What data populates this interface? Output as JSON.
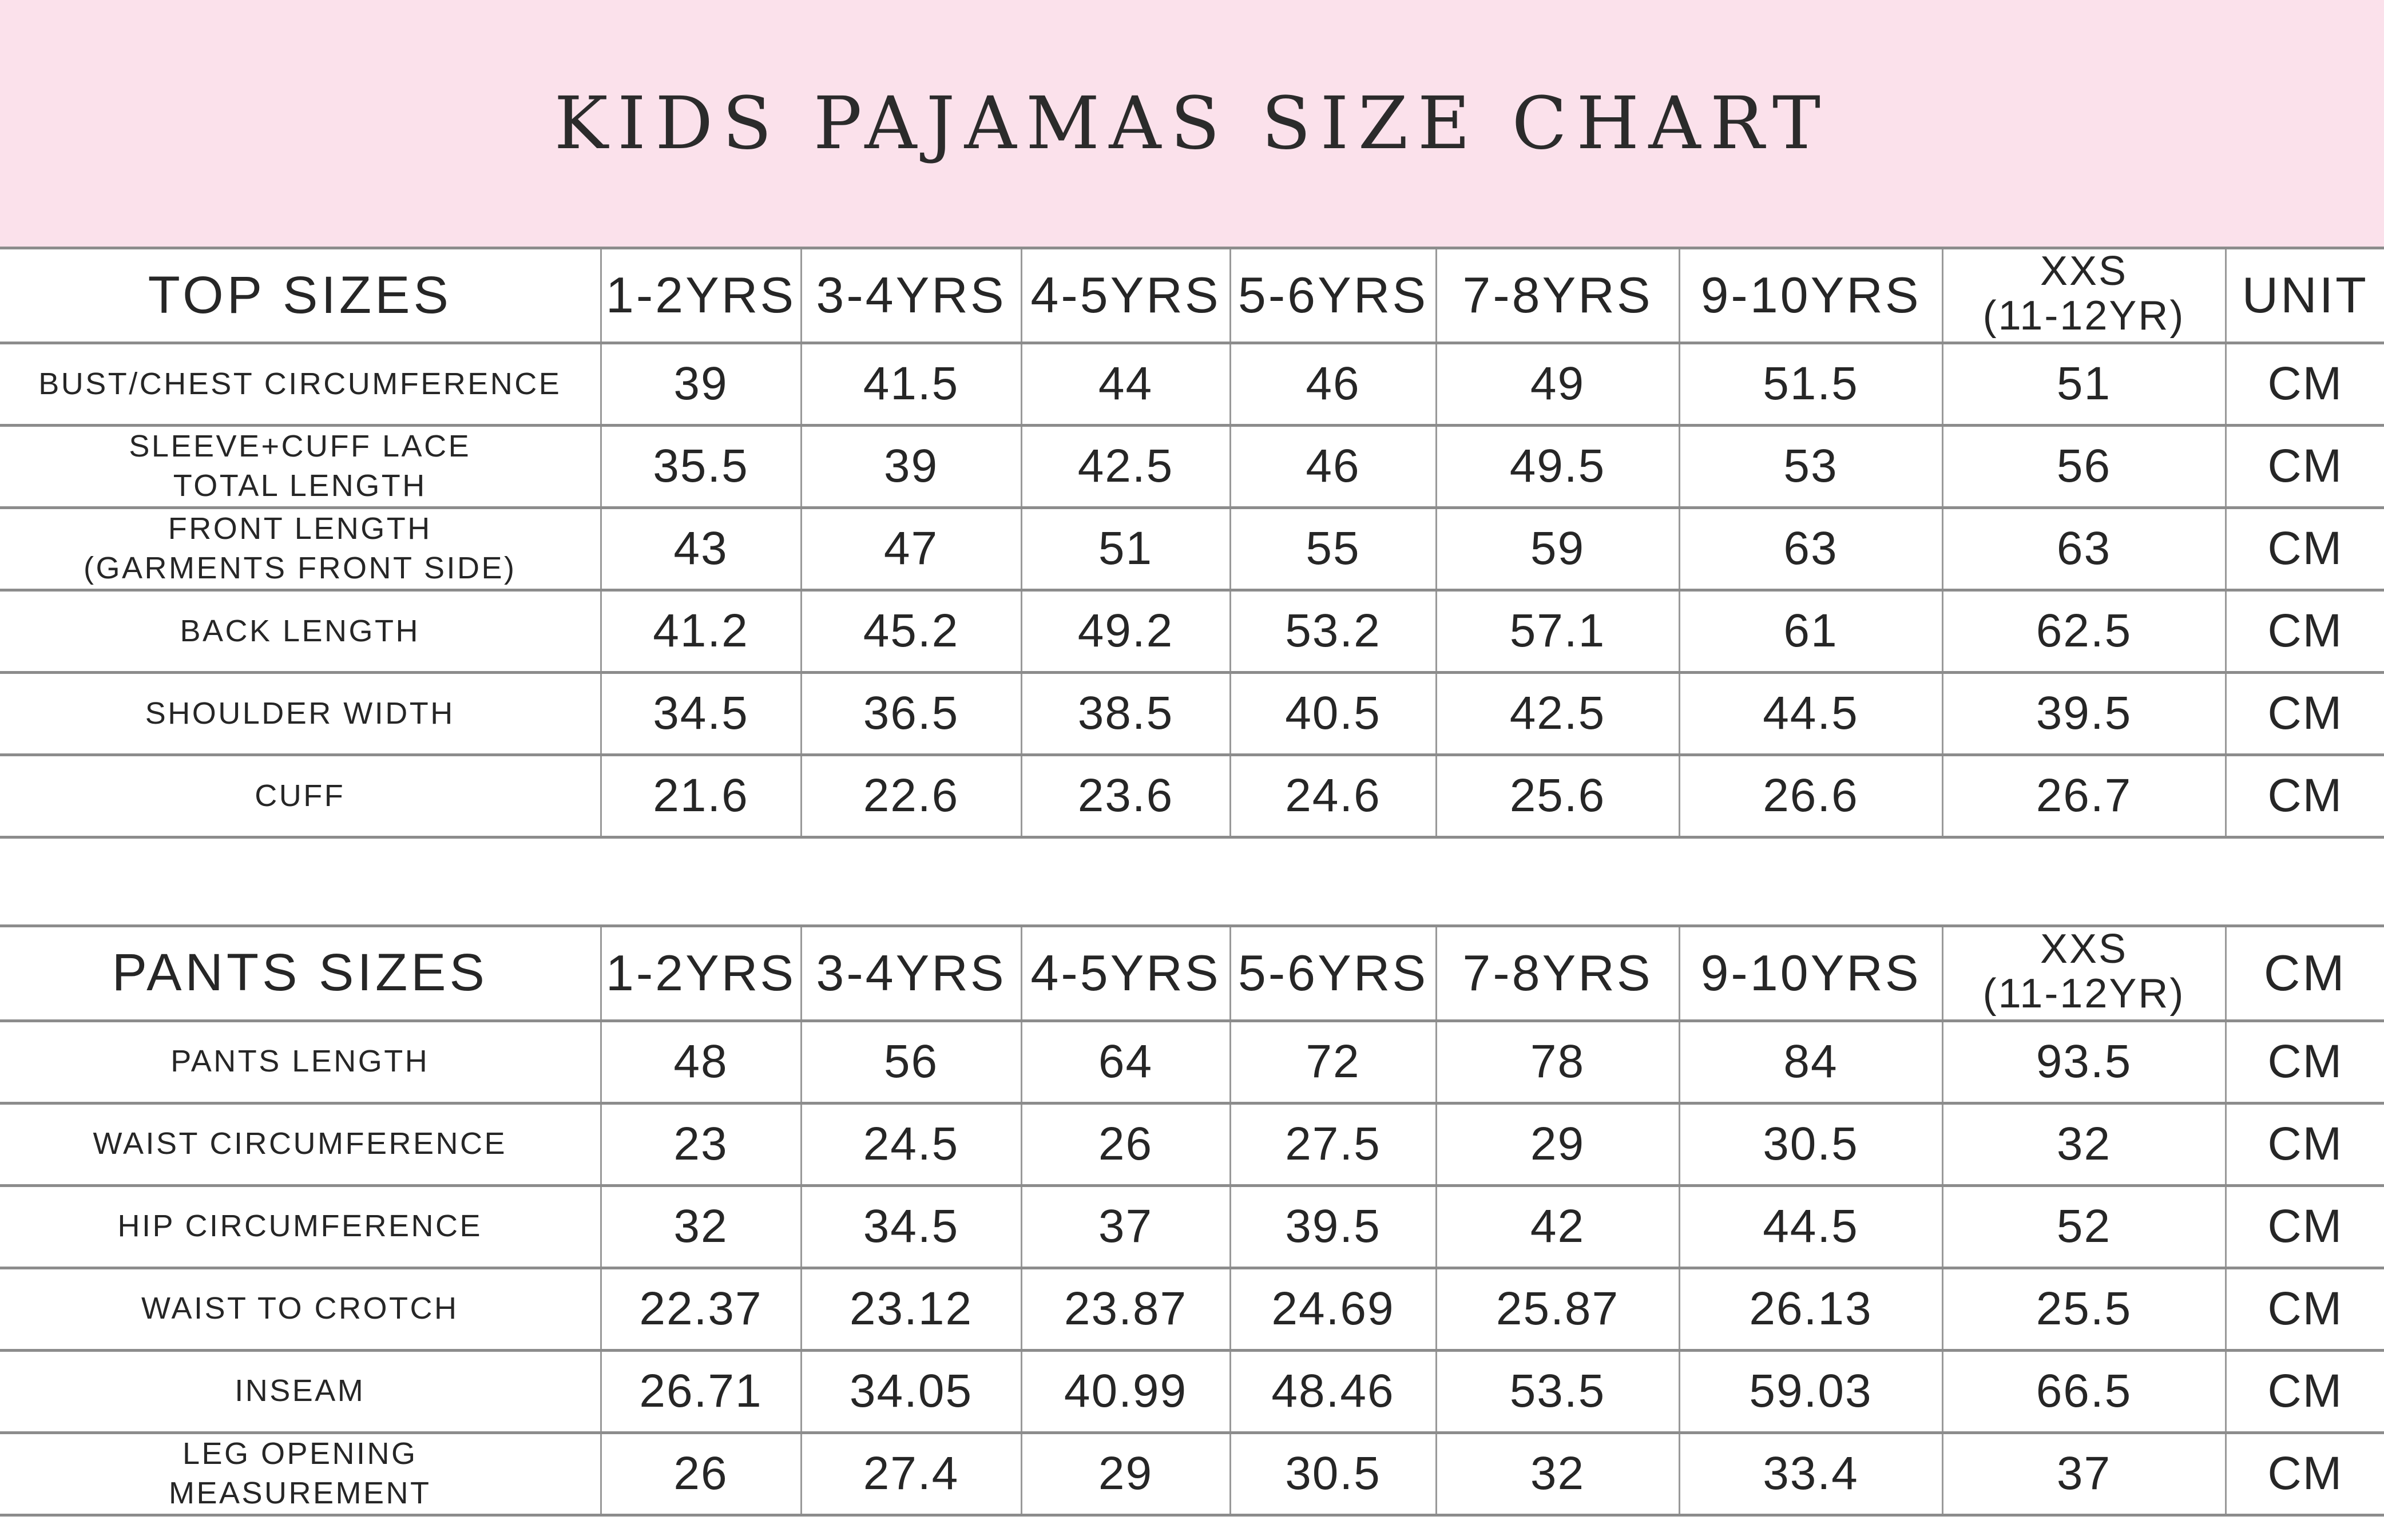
{
  "title": "KIDS PAJAMAS SIZE CHART",
  "colors": {
    "banner_pink": "#FBE1EB",
    "text": "#262626",
    "grid_horizontal": "#8C8C8C",
    "grid_vertical": "#999999",
    "background": "#FFFFFF"
  },
  "chart_data": [
    {
      "type": "table",
      "section": "top-sizes",
      "columns": [
        "TOP SIZES",
        "1-2YRS",
        "3-4YRS",
        "4-5YRS",
        "5-6YRS",
        "7-8YRS",
        "9-10YRS",
        "XXS\n(11-12YR)",
        "UNIT"
      ],
      "rows": [
        [
          "BUST/CHEST CIRCUMFERENCE",
          "39",
          "41.5",
          "44",
          "46",
          "49",
          "51.5",
          "51",
          "CM"
        ],
        [
          "SLEEVE+CUFF LACE\nTOTAL LENGTH",
          "35.5",
          "39",
          "42.5",
          "46",
          "49.5",
          "53",
          "56",
          "CM"
        ],
        [
          "FRONT LENGTH\n(GARMENTS FRONT SIDE)",
          "43",
          "47",
          "51",
          "55",
          "59",
          "63",
          "63",
          "CM"
        ],
        [
          "BACK LENGTH",
          "41.2",
          "45.2",
          "49.2",
          "53.2",
          "57.1",
          "61",
          "62.5",
          "CM"
        ],
        [
          "SHOULDER WIDTH",
          "34.5",
          "36.5",
          "38.5",
          "40.5",
          "42.5",
          "44.5",
          "39.5",
          "CM"
        ],
        [
          "CUFF",
          "21.6",
          "22.6",
          "23.6",
          "24.6",
          "25.6",
          "26.6",
          "26.7",
          "CM"
        ]
      ]
    },
    {
      "type": "table",
      "section": "pants-sizes",
      "columns": [
        "PANTS SIZES",
        "1-2YRS",
        "3-4YRS",
        "4-5YRS",
        "5-6YRS",
        "7-8YRS",
        "9-10YRS",
        "XXS\n(11-12YR)",
        "CM"
      ],
      "rows": [
        [
          "PANTS LENGTH",
          "48",
          "56",
          "64",
          "72",
          "78",
          "84",
          "93.5",
          "CM"
        ],
        [
          "WAIST CIRCUMFERENCE",
          "23",
          "24.5",
          "26",
          "27.5",
          "29",
          "30.5",
          "32",
          "CM"
        ],
        [
          "HIP CIRCUMFERENCE",
          "32",
          "34.5",
          "37",
          "39.5",
          "42",
          "44.5",
          "52",
          "CM"
        ],
        [
          "WAIST TO CROTCH",
          "22.37",
          "23.12",
          "23.87",
          "24.69",
          "25.87",
          "26.13",
          "25.5",
          "CM"
        ],
        [
          "INSEAM",
          "26.71",
          "34.05",
          "40.99",
          "48.46",
          "53.5",
          "59.03",
          "66.5",
          "CM"
        ],
        [
          "LEG OPENING\nMEASUREMENT",
          "26",
          "27.4",
          "29",
          "30.5",
          "32",
          "33.4",
          "37",
          "CM"
        ]
      ]
    }
  ]
}
